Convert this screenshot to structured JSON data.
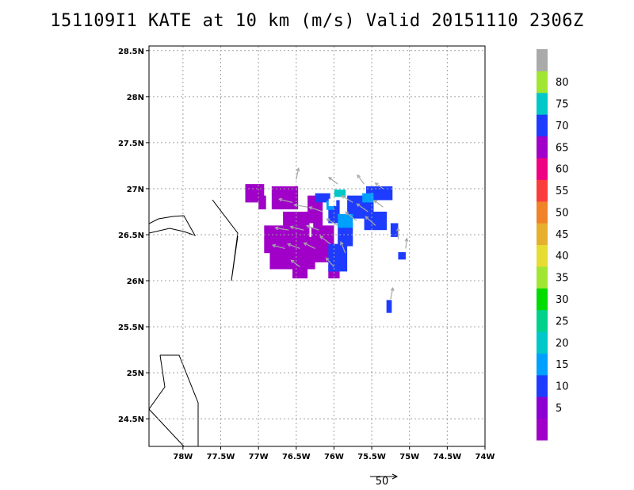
{
  "title": "151109I1 KATE at 10 km (m/s) Valid 20151110 2306Z",
  "colors": {
    "grid": "#a0a0a0",
    "coast": "#000000",
    "arrow": "#a8a8a8"
  },
  "chart_data": {
    "type": "heatmap",
    "title": "151109I1 KATE at 10 km (m/s) Valid 20151110 2306Z",
    "lon_range": [
      -78.45,
      -74.0
    ],
    "lat_range": [
      24.2,
      28.55
    ],
    "lon_ticks": [
      {
        "value": -78.0,
        "label": "78W"
      },
      {
        "value": -77.5,
        "label": "77.5W"
      },
      {
        "value": -77.0,
        "label": "77W"
      },
      {
        "value": -76.5,
        "label": "76.5W"
      },
      {
        "value": -76.0,
        "label": "76W"
      },
      {
        "value": -75.5,
        "label": "75.5W"
      },
      {
        "value": -75.0,
        "label": "75W"
      },
      {
        "value": -74.5,
        "label": "74.5W"
      },
      {
        "value": -74.0,
        "label": "74W"
      }
    ],
    "lat_ticks": [
      {
        "value": 24.5,
        "label": "24.5N"
      },
      {
        "value": 25.0,
        "label": "25N"
      },
      {
        "value": 25.5,
        "label": "25.5N"
      },
      {
        "value": 26.0,
        "label": "26N"
      },
      {
        "value": 26.5,
        "label": "26.5N"
      },
      {
        "value": 27.0,
        "label": "27N"
      },
      {
        "value": 27.5,
        "label": "27.5N"
      },
      {
        "value": 28.0,
        "label": "28N"
      },
      {
        "value": 28.5,
        "label": "28.5N"
      }
    ],
    "grid": true,
    "colorbar": {
      "bins": [
        {
          "label": "",
          "color": "#a000c8"
        },
        {
          "label": "5",
          "color": "#8c00d2"
        },
        {
          "label": "10",
          "color": "#1e3cff"
        },
        {
          "label": "15",
          "color": "#00a0ff"
        },
        {
          "label": "20",
          "color": "#00c8c8"
        },
        {
          "label": "25",
          "color": "#00d28c"
        },
        {
          "label": "30",
          "color": "#00dc00"
        },
        {
          "label": "35",
          "color": "#a0e632"
        },
        {
          "label": "40",
          "color": "#e6dc32"
        },
        {
          "label": "45",
          "color": "#e6af2d"
        },
        {
          "label": "50",
          "color": "#f08228"
        },
        {
          "label": "55",
          "color": "#fa3c3c"
        },
        {
          "label": "60",
          "color": "#f00082"
        },
        {
          "label": "65",
          "color": "#a000c8"
        },
        {
          "label": "70",
          "color": "#1e3cff"
        },
        {
          "label": "75",
          "color": "#00c8c8"
        },
        {
          "label": "80",
          "color": "#a0e632"
        },
        {
          "label": "",
          "color": "#aaaaaa"
        }
      ]
    },
    "cell_size_deg": 0.05,
    "cells": [
      {
        "lon": -77.05,
        "lat": 26.95,
        "w": 0.25,
        "h": 0.2,
        "bin": 0
      },
      {
        "lon": -76.95,
        "lat": 26.85,
        "w": 0.1,
        "h": 0.15,
        "bin": 0
      },
      {
        "lon": -76.65,
        "lat": 26.9,
        "w": 0.35,
        "h": 0.25,
        "bin": 0
      },
      {
        "lon": -76.5,
        "lat": 26.55,
        "w": 0.35,
        "h": 0.4,
        "bin": 0
      },
      {
        "lon": -76.8,
        "lat": 26.45,
        "w": 0.25,
        "h": 0.3,
        "bin": 0
      },
      {
        "lon": -76.55,
        "lat": 26.3,
        "w": 0.6,
        "h": 0.35,
        "bin": 0
      },
      {
        "lon": -76.25,
        "lat": 26.75,
        "w": 0.2,
        "h": 0.35,
        "bin": 0
      },
      {
        "lon": -76.15,
        "lat": 26.4,
        "w": 0.3,
        "h": 0.4,
        "bin": 0
      },
      {
        "lon": -76.45,
        "lat": 26.1,
        "w": 0.2,
        "h": 0.15,
        "bin": 0
      },
      {
        "lon": -76.0,
        "lat": 26.1,
        "w": 0.15,
        "h": 0.15,
        "bin": 0
      },
      {
        "lon": -76.15,
        "lat": 26.9,
        "w": 0.2,
        "h": 0.1,
        "bin": 2
      },
      {
        "lon": -76.0,
        "lat": 26.75,
        "w": 0.15,
        "h": 0.25,
        "bin": 2
      },
      {
        "lon": -75.85,
        "lat": 26.5,
        "w": 0.2,
        "h": 0.25,
        "bin": 2
      },
      {
        "lon": -75.95,
        "lat": 26.25,
        "w": 0.25,
        "h": 0.3,
        "bin": 2
      },
      {
        "lon": -75.65,
        "lat": 26.8,
        "w": 0.35,
        "h": 0.25,
        "bin": 2
      },
      {
        "lon": -75.45,
        "lat": 26.65,
        "w": 0.3,
        "h": 0.2,
        "bin": 2
      },
      {
        "lon": -75.4,
        "lat": 26.95,
        "w": 0.35,
        "h": 0.15,
        "bin": 2
      },
      {
        "lon": -75.2,
        "lat": 26.55,
        "w": 0.1,
        "h": 0.15,
        "bin": 2
      },
      {
        "lon": -75.1,
        "lat": 26.27,
        "w": 0.1,
        "h": 0.08,
        "bin": 2
      },
      {
        "lon": -75.27,
        "lat": 25.72,
        "w": 0.07,
        "h": 0.14,
        "bin": 2
      },
      {
        "lon": -76.05,
        "lat": 26.82,
        "w": 0.1,
        "h": 0.1,
        "bin": 3
      },
      {
        "lon": -75.85,
        "lat": 26.65,
        "w": 0.2,
        "h": 0.15,
        "bin": 3
      },
      {
        "lon": -75.55,
        "lat": 26.9,
        "w": 0.15,
        "h": 0.1,
        "bin": 3
      },
      {
        "lon": -75.92,
        "lat": 26.95,
        "w": 0.15,
        "h": 0.08,
        "bin": 4
      }
    ],
    "holes": [
      {
        "lon": -76.02,
        "lat": 26.85,
        "w": 0.1,
        "h": 0.08
      },
      {
        "lon": -76.3,
        "lat": 26.6,
        "w": 0.05,
        "h": 0.05
      }
    ],
    "wind_vectors": [
      {
        "lon": -76.5,
        "lat": 27.1,
        "u": 2,
        "v": 10
      },
      {
        "lon": -75.95,
        "lat": 27.05,
        "u": -8,
        "v": 6
      },
      {
        "lon": -75.6,
        "lat": 27.05,
        "u": -6,
        "v": 8
      },
      {
        "lon": -75.35,
        "lat": 27.0,
        "u": -7,
        "v": 5
      },
      {
        "lon": -76.55,
        "lat": 26.85,
        "u": -12,
        "v": 3
      },
      {
        "lon": -76.35,
        "lat": 26.8,
        "u": -12,
        "v": 2
      },
      {
        "lon": -76.15,
        "lat": 26.75,
        "u": -12,
        "v": 4
      },
      {
        "lon": -75.75,
        "lat": 26.85,
        "u": -10,
        "v": 6
      },
      {
        "lon": -75.55,
        "lat": 26.75,
        "u": -10,
        "v": 7
      },
      {
        "lon": -75.35,
        "lat": 26.8,
        "u": -8,
        "v": 6
      },
      {
        "lon": -76.6,
        "lat": 26.55,
        "u": -12,
        "v": 2
      },
      {
        "lon": -76.4,
        "lat": 26.55,
        "u": -12,
        "v": 3
      },
      {
        "lon": -76.2,
        "lat": 26.55,
        "u": -11,
        "v": 4
      },
      {
        "lon": -75.95,
        "lat": 26.6,
        "u": -10,
        "v": 6
      },
      {
        "lon": -75.7,
        "lat": 26.65,
        "u": -10,
        "v": 8
      },
      {
        "lon": -75.45,
        "lat": 26.6,
        "u": -9,
        "v": 8
      },
      {
        "lon": -76.65,
        "lat": 26.35,
        "u": -11,
        "v": 3
      },
      {
        "lon": -76.45,
        "lat": 26.35,
        "u": -11,
        "v": 4
      },
      {
        "lon": -76.25,
        "lat": 26.35,
        "u": -10,
        "v": 5
      },
      {
        "lon": -76.05,
        "lat": 26.4,
        "u": -9,
        "v": 7
      },
      {
        "lon": -75.85,
        "lat": 26.3,
        "u": -4,
        "v": 10
      },
      {
        "lon": -76.45,
        "lat": 26.15,
        "u": -8,
        "v": 6
      },
      {
        "lon": -76.0,
        "lat": 26.15,
        "u": -7,
        "v": 8
      },
      {
        "lon": -75.15,
        "lat": 26.45,
        "u": 0,
        "v": 10
      },
      {
        "lon": -75.05,
        "lat": 26.35,
        "u": 1,
        "v": 9
      },
      {
        "lon": -75.25,
        "lat": 25.8,
        "u": 2,
        "v": 10
      }
    ],
    "reference_vector": {
      "label": "50",
      "value": 50
    }
  }
}
